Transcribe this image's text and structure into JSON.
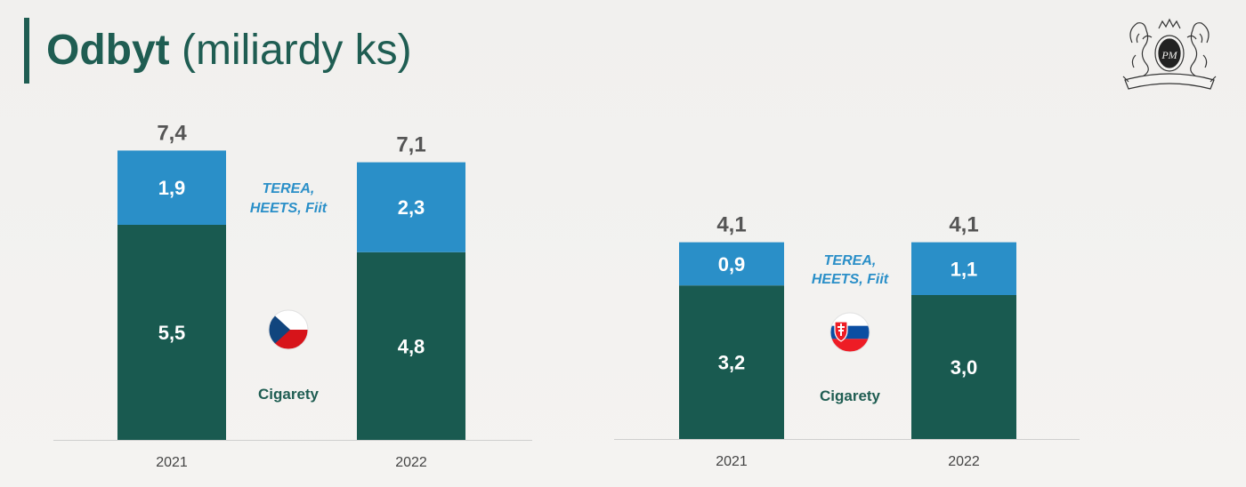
{
  "title": {
    "bold": "Odbyt",
    "light": "(miliardy ks)"
  },
  "colors": {
    "cigarety": "#195a50",
    "heated": "#2a8fc8",
    "total_label": "#555555",
    "category_label": "#555555"
  },
  "chart_data": [
    {
      "type": "bar",
      "stacked": true,
      "country": "CZ",
      "categories": [
        "2021",
        "2022"
      ],
      "series": [
        {
          "name": "Cigarety",
          "values": [
            5.5,
            4.8
          ],
          "labels": [
            "5,5",
            "4,8"
          ]
        },
        {
          "name": "TEREA, HEETS, Fiit",
          "values": [
            1.9,
            2.3
          ],
          "labels": [
            "1,9",
            "2,3"
          ]
        }
      ],
      "totals": [
        7.4,
        7.1
      ],
      "total_labels": [
        "7,4",
        "7,1"
      ],
      "legend_top": [
        "TEREA,",
        "HEETS, Fiit"
      ],
      "legend_bottom": "Cigarety"
    },
    {
      "type": "bar",
      "stacked": true,
      "country": "SK",
      "categories": [
        "2021",
        "2022"
      ],
      "series": [
        {
          "name": "Cigarety",
          "values": [
            3.2,
            3.0
          ],
          "labels": [
            "3,2",
            "3,0"
          ]
        },
        {
          "name": "TEREA, HEETS, Fiit",
          "values": [
            0.9,
            1.1
          ],
          "labels": [
            "0,9",
            "1,1"
          ]
        }
      ],
      "totals": [
        4.1,
        4.1
      ],
      "total_labels": [
        "4,1",
        "4,1"
      ],
      "legend_top": [
        "TEREA,",
        "HEETS, Fiit"
      ],
      "legend_bottom": "Cigarety"
    }
  ]
}
